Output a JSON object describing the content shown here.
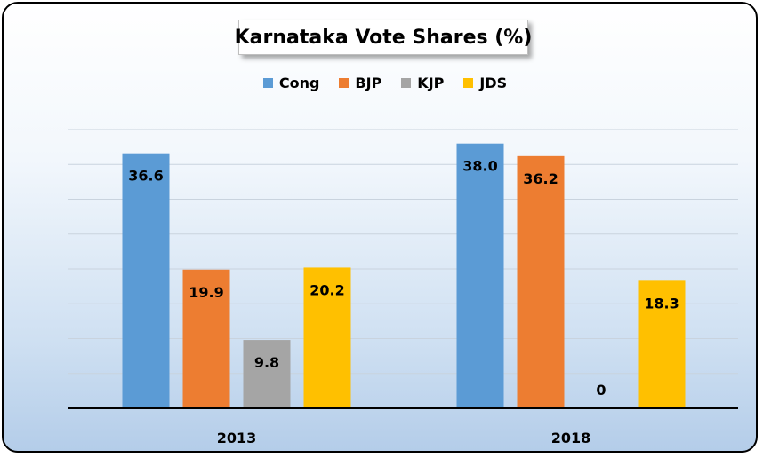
{
  "chart_data": {
    "type": "bar",
    "title": "Karnataka Vote Shares (%)",
    "categories": [
      "2013",
      "2018"
    ],
    "series": [
      {
        "name": "Cong",
        "color": "#5b9bd5",
        "values": [
          36.6,
          38.0
        ],
        "labels": [
          "36.6",
          "38.0"
        ]
      },
      {
        "name": "BJP",
        "color": "#ed7d31",
        "values": [
          19.9,
          36.2
        ],
        "labels": [
          "19.9",
          "36.2"
        ]
      },
      {
        "name": "KJP",
        "color": "#a5a5a5",
        "values": [
          9.8,
          0
        ],
        "labels": [
          "9.8",
          "0"
        ]
      },
      {
        "name": "JDS",
        "color": "#ffc000",
        "values": [
          20.2,
          18.3
        ],
        "labels": [
          "20.2",
          "18.3"
        ]
      }
    ],
    "ylim": [
      0,
      40
    ],
    "xlabel": "",
    "ylabel": "",
    "grid": true,
    "legend_position": "top"
  }
}
